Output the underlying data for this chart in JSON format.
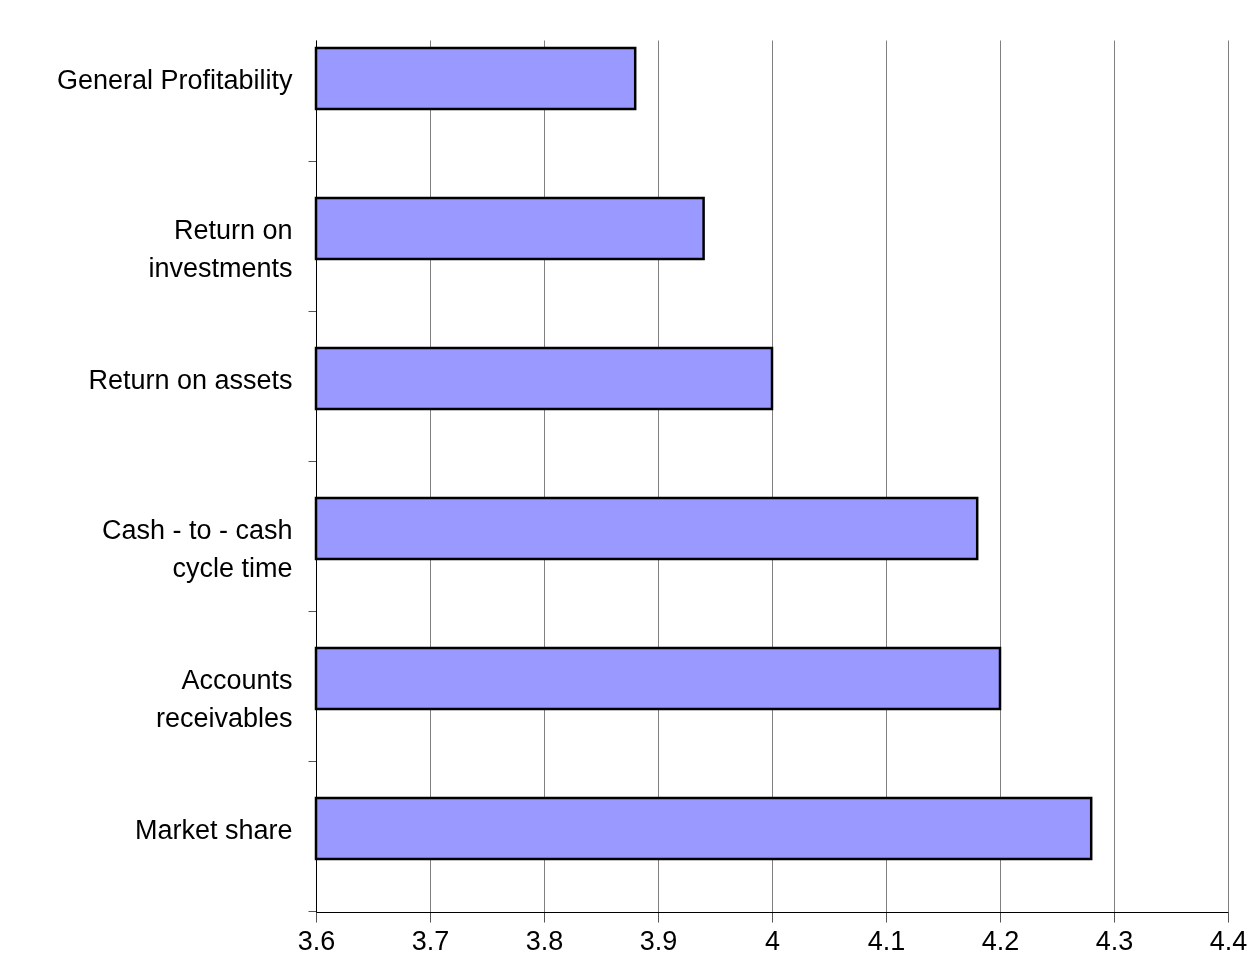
{
  "chart_data": {
    "type": "bar",
    "orientation": "horizontal",
    "categories": [
      "General Profitability",
      "Return on\ninvestments",
      "Return on assets",
      "Cash - to - cash\ncycle time",
      "Accounts\nreceivables",
      "Market share"
    ],
    "values": [
      3.88,
      3.94,
      4.0,
      4.18,
      4.2,
      4.28
    ],
    "color": "#9999ff",
    "xlim": [
      3.6,
      4.4
    ],
    "xticks": [
      3.6,
      3.7,
      3.8,
      3.9,
      4,
      4.1,
      4.2,
      4.3,
      4.4
    ],
    "grid": "x"
  }
}
